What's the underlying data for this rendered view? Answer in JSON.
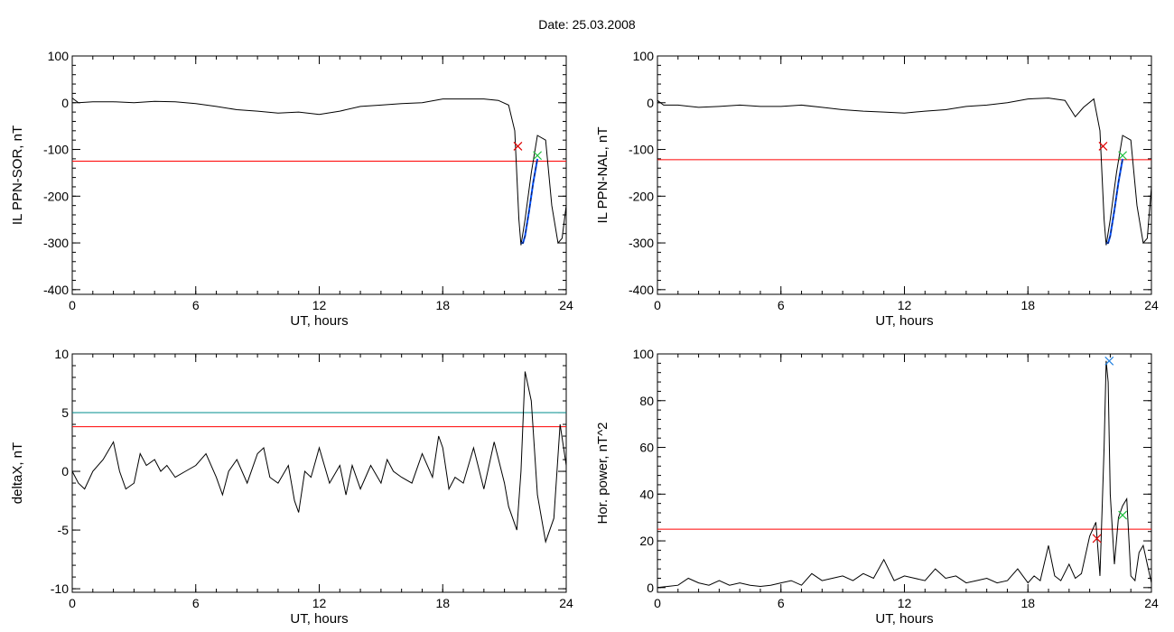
{
  "figure": {
    "title": "Date:  25.03.2008"
  },
  "colors": {
    "data": "#000000",
    "threshold": "#ff0000",
    "extra_threshold": "#008c8c",
    "fit": "#0050ff",
    "fit_dash": "#102060",
    "marker_red": "#e00000",
    "marker_green": "#20c040",
    "marker_blue": "#2080e0"
  },
  "chart_data": [
    {
      "type": "line",
      "xlabel": "UT, hours",
      "ylabel": "IL PPN-SOR, nT",
      "xlim": [
        0,
        24
      ],
      "ylim": [
        -410,
        100
      ],
      "xticks": [
        0,
        6,
        12,
        18,
        24
      ],
      "yticks": [
        -400,
        -300,
        -200,
        -100,
        0,
        100
      ],
      "grid": false,
      "series": [
        {
          "role": "data",
          "x": [
            0,
            0.3,
            1,
            2,
            3,
            4,
            5,
            6,
            7,
            8,
            9,
            10,
            11,
            12,
            13,
            14,
            15,
            16,
            17,
            18,
            19,
            20,
            20.7,
            21.2,
            21.5,
            21.7,
            21.8,
            22.0,
            22.3,
            22.6,
            23.0,
            23.3,
            23.6,
            23.8,
            24
          ],
          "y": [
            10,
            0,
            2,
            2,
            0,
            3,
            2,
            -2,
            -8,
            -15,
            -18,
            -22,
            -20,
            -25,
            -18,
            -8,
            -5,
            -2,
            0,
            8,
            8,
            8,
            5,
            -5,
            -60,
            -250,
            -305,
            -250,
            -150,
            -70,
            -80,
            -220,
            -300,
            -290,
            -220
          ]
        },
        {
          "role": "fit",
          "x": [
            21.8,
            21.9,
            22.0,
            22.2,
            22.4,
            22.6
          ],
          "y": [
            -300,
            -300,
            -285,
            -230,
            -170,
            -120
          ]
        }
      ],
      "thresholds": [
        {
          "y": -125,
          "color": "red"
        }
      ],
      "markers": [
        {
          "x": 21.65,
          "y": -93,
          "color": "red"
        },
        {
          "x": 22.6,
          "y": -113,
          "color": "green"
        }
      ]
    },
    {
      "type": "line",
      "xlabel": "UT, hours",
      "ylabel": "IL PPN-NAL, nT",
      "xlim": [
        0,
        24
      ],
      "ylim": [
        -410,
        100
      ],
      "xticks": [
        0,
        6,
        12,
        18,
        24
      ],
      "yticks": [
        -400,
        -300,
        -200,
        -100,
        0,
        100
      ],
      "grid": false,
      "series": [
        {
          "role": "data",
          "x": [
            0,
            0.3,
            1,
            2,
            3,
            4,
            5,
            6,
            7,
            8,
            9,
            10,
            11,
            12,
            13,
            14,
            15,
            16,
            17,
            18,
            19,
            19.8,
            20.3,
            20.7,
            21.2,
            21.5,
            21.7,
            21.8,
            22.0,
            22.3,
            22.6,
            23.0,
            23.3,
            23.6,
            23.8,
            24
          ],
          "y": [
            5,
            -5,
            -5,
            -10,
            -8,
            -5,
            -8,
            -8,
            -5,
            -10,
            -15,
            -18,
            -20,
            -22,
            -18,
            -15,
            -8,
            -5,
            0,
            8,
            10,
            5,
            -30,
            -10,
            8,
            -60,
            -250,
            -305,
            -250,
            -150,
            -70,
            -80,
            -220,
            -300,
            -290,
            -180
          ]
        },
        {
          "role": "fit",
          "x": [
            21.8,
            21.9,
            22.0,
            22.2,
            22.4,
            22.6
          ],
          "y": [
            -300,
            -300,
            -285,
            -230,
            -170,
            -120
          ]
        }
      ],
      "thresholds": [
        {
          "y": -122,
          "color": "red"
        }
      ],
      "markers": [
        {
          "x": 21.65,
          "y": -93,
          "color": "red"
        },
        {
          "x": 22.6,
          "y": -113,
          "color": "green"
        }
      ]
    },
    {
      "type": "line",
      "xlabel": "UT, hours",
      "ylabel": "deltaX, nT",
      "xlim": [
        0,
        24
      ],
      "ylim": [
        -10.3,
        10
      ],
      "xticks": [
        0,
        6,
        12,
        18,
        24
      ],
      "yticks": [
        -10,
        -5,
        0,
        5,
        10
      ],
      "grid": false,
      "series": [
        {
          "role": "data",
          "x": [
            0,
            0.3,
            0.6,
            1,
            1.5,
            2,
            2.3,
            2.6,
            3,
            3.3,
            3.6,
            4,
            4.3,
            4.6,
            5,
            5.5,
            6,
            6.5,
            7,
            7.3,
            7.6,
            8,
            8.5,
            9,
            9.3,
            9.6,
            10,
            10.5,
            10.8,
            11,
            11.3,
            11.6,
            12,
            12.5,
            13,
            13.3,
            13.6,
            14,
            14.5,
            15,
            15.3,
            15.6,
            16,
            16.5,
            17,
            17.5,
            17.8,
            18,
            18.3,
            18.6,
            19,
            19.5,
            20,
            20.5,
            21,
            21.2,
            21.6,
            21.8,
            22.0,
            22.3,
            22.6,
            23.0,
            23.4,
            23.7,
            24
          ],
          "y": [
            0,
            -1,
            -1.5,
            0,
            1,
            2.5,
            0,
            -1.5,
            -1,
            1.5,
            0.5,
            1,
            0,
            0.5,
            -0.5,
            0,
            0.5,
            1.5,
            -0.5,
            -2,
            0,
            1,
            -1,
            1.5,
            2,
            -0.5,
            -1,
            0.5,
            -2.5,
            -3.5,
            0,
            -0.5,
            2,
            -1,
            0.5,
            -2,
            0.5,
            -1.5,
            0.5,
            -1,
            1,
            0,
            -0.5,
            -1,
            1.5,
            -0.5,
            3,
            2,
            -1.5,
            -0.5,
            -1,
            2,
            -1.5,
            2.5,
            -1,
            -3,
            -5,
            0,
            8.5,
            6,
            -2,
            -6,
            -4,
            4,
            0.5
          ]
        }
      ],
      "thresholds": [
        {
          "y": 5,
          "color": "extra"
        },
        {
          "y": 3.8,
          "color": "red"
        }
      ],
      "markers": []
    },
    {
      "type": "line",
      "xlabel": "UT, hours",
      "ylabel": "Hor. power, nT^2",
      "xlim": [
        0,
        24
      ],
      "ylim": [
        -2,
        100
      ],
      "xticks": [
        0,
        6,
        12,
        18,
        24
      ],
      "yticks": [
        0,
        20,
        40,
        60,
        80,
        100
      ],
      "grid": false,
      "series": [
        {
          "role": "data",
          "x": [
            0,
            0.5,
            1,
            1.5,
            2,
            2.5,
            3,
            3.5,
            4,
            4.5,
            5,
            5.5,
            6,
            6.5,
            7,
            7.5,
            8,
            8.5,
            9,
            9.5,
            10,
            10.5,
            11,
            11.5,
            12,
            12.5,
            13,
            13.5,
            14,
            14.5,
            15,
            15.5,
            16,
            16.5,
            17,
            17.5,
            18,
            18.3,
            18.6,
            19,
            19.3,
            19.6,
            20,
            20.3,
            20.6,
            21,
            21.3,
            21.5,
            21.7,
            21.8,
            21.9,
            22.0,
            22.2,
            22.4,
            22.6,
            22.8,
            23.0,
            23.2,
            23.4,
            23.6,
            23.8,
            24
          ],
          "y": [
            0,
            0.5,
            1,
            4,
            2,
            1,
            3,
            1,
            2,
            1,
            0.5,
            1,
            2,
            3,
            1,
            6,
            3,
            4,
            5,
            3,
            6,
            4,
            12,
            3,
            5,
            4,
            3,
            8,
            4,
            5,
            2,
            3,
            4,
            2,
            3,
            8,
            2,
            5,
            3,
            18,
            5,
            3,
            10,
            4,
            6,
            22,
            28,
            5,
            60,
            97,
            88,
            40,
            10,
            30,
            35,
            38,
            5,
            3,
            15,
            18,
            10,
            2
          ]
        }
      ],
      "thresholds": [
        {
          "y": 25,
          "color": "red"
        }
      ],
      "markers": [
        {
          "x": 21.35,
          "y": 21,
          "color": "red"
        },
        {
          "x": 21.95,
          "y": 97,
          "color": "blue"
        },
        {
          "x": 22.6,
          "y": 31,
          "color": "green"
        }
      ]
    }
  ]
}
